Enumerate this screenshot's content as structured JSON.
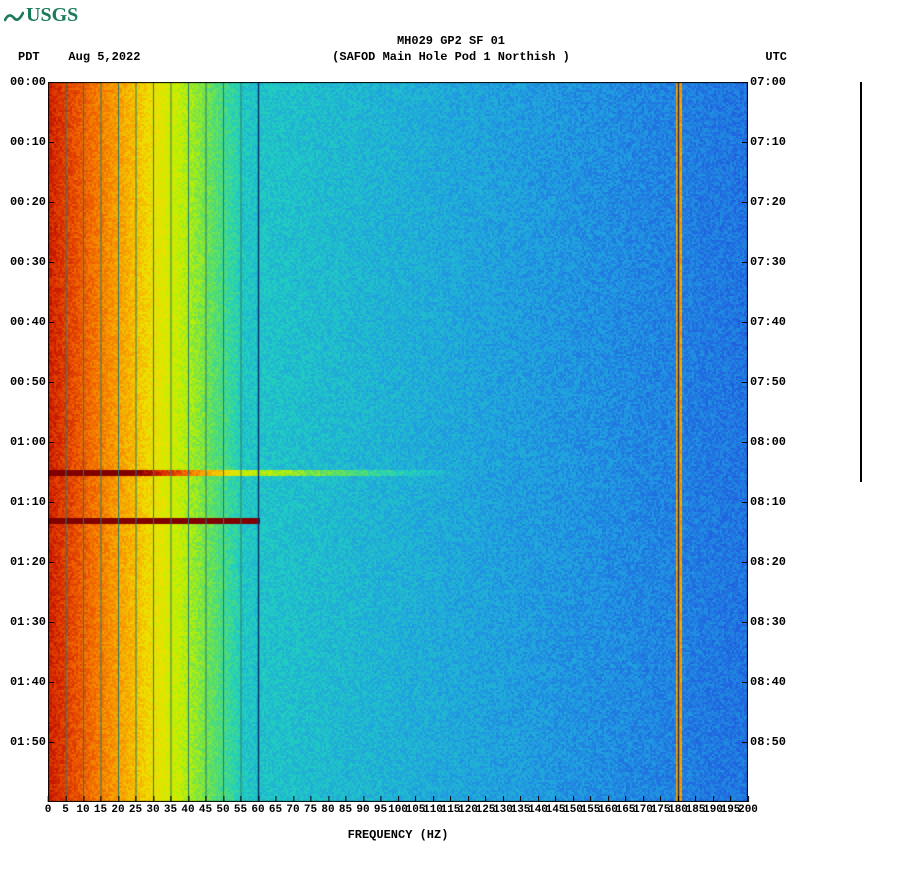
{
  "logo": {
    "text": "USGS"
  },
  "header": {
    "title": "MH029 GP2 SF 01",
    "subtitle": "(SAFOD Main Hole Pod 1 Northish )",
    "tz_left_label": "PDT",
    "date": "Aug 5,2022",
    "tz_right_label": "UTC"
  },
  "spectrogram": {
    "type": "heatmap",
    "x_axis": {
      "label": "FREQUENCY (HZ)",
      "min": 0,
      "max": 200,
      "tick_step": 5,
      "ticks": [
        0,
        5,
        10,
        15,
        20,
        25,
        30,
        35,
        40,
        45,
        50,
        55,
        60,
        65,
        70,
        75,
        80,
        85,
        90,
        95,
        100,
        105,
        110,
        115,
        120,
        125,
        130,
        135,
        140,
        145,
        150,
        155,
        160,
        165,
        170,
        175,
        180,
        185,
        190,
        195,
        200
      ]
    },
    "y_axis_left": {
      "label_tz": "PDT",
      "start": "00:00",
      "end": "02:00",
      "ticks": [
        "00:00",
        "00:10",
        "00:20",
        "00:30",
        "00:40",
        "00:50",
        "01:00",
        "01:10",
        "01:20",
        "01:30",
        "01:40",
        "01:50"
      ]
    },
    "y_axis_right": {
      "label_tz": "UTC",
      "start": "07:00",
      "end": "09:00",
      "ticks": [
        "07:00",
        "07:10",
        "07:20",
        "07:30",
        "07:40",
        "07:50",
        "08:00",
        "08:10",
        "08:20",
        "08:30",
        "08:40",
        "08:50"
      ]
    },
    "grid": {
      "vertical_lines_hz": [
        5,
        10,
        15,
        20,
        25,
        30,
        35,
        40,
        45,
        50,
        55
      ],
      "dark_vertical_lines_hz": [
        60,
        180
      ],
      "grid_line_color": "#2a7a6a",
      "dark_line_color": "#0a2a6a"
    },
    "color_scale": {
      "gradient": [
        "#800000",
        "#d02000",
        "#f06000",
        "#f8a000",
        "#f0e000",
        "#c0f000",
        "#60e060",
        "#20d0c0",
        "#20a0e0",
        "#2060e0",
        "#1030b0"
      ],
      "low_freq_hot_until_hz": 25,
      "transition_until_hz": 55,
      "background_color": "#2a80e0"
    },
    "events": [
      {
        "time_pdt": "01:05",
        "intensity": "high",
        "span_hz": [
          0,
          120
        ],
        "band_color": "#d04000"
      },
      {
        "time_pdt": "01:13",
        "intensity": "very_high",
        "span_hz": [
          0,
          60
        ],
        "band_color": "#701000"
      }
    ],
    "artifact_lines_hz": [
      180
    ],
    "plot_background": "#ffffff",
    "title_fontsize": 12,
    "label_fontsize": 12,
    "tick_fontsize": 11
  }
}
